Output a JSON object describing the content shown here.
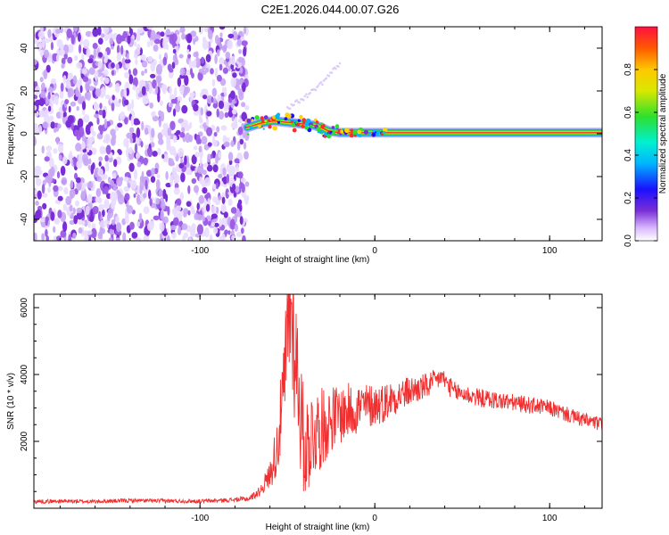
{
  "title": "C2E1.2026.044.00.07.G26",
  "colors": {
    "snr_line": "#f03030",
    "scatter": "#7a2fd6",
    "track_core": "#ff2a2a",
    "track_mid": "#ffd200",
    "track_outer": "#33e033",
    "track_edge": "#1aa0ff"
  },
  "chart_data": [
    {
      "type": "heatmap",
      "name": "spectrogram",
      "xlabel": "Height of straight line (km)",
      "ylabel": "Frequency (Hz)",
      "xlim": [
        -195,
        130
      ],
      "ylim": [
        -50,
        50
      ],
      "xticks": [
        -100,
        0,
        100
      ],
      "xtick_labels": [
        "-100",
        "0",
        "100"
      ],
      "yticks": [
        -40,
        -20,
        0,
        20,
        40
      ],
      "ytick_labels": [
        "-40",
        "-20",
        "0",
        "20",
        "40"
      ],
      "noise_region_km": [
        -195,
        -73
      ],
      "track": {
        "x": [
          -73,
          -65,
          -58,
          -52,
          -46,
          -40,
          -35,
          -31,
          -27,
          -24,
          -20,
          -15,
          -10,
          -5,
          0,
          5,
          20,
          40,
          60,
          80,
          100,
          115,
          130
        ],
        "y": [
          3,
          5,
          6,
          5.5,
          5,
          4.5,
          4,
          3,
          1.5,
          1,
          0.5,
          0.5,
          0.5,
          0.5,
          0.5,
          0.5,
          0.5,
          0.5,
          0.5,
          0.5,
          0.5,
          0.5,
          0.5
        ]
      },
      "faint_streak": {
        "x": [
          -50,
          -40,
          -30,
          -20
        ],
        "y": [
          12,
          17,
          24,
          33
        ]
      },
      "colorbar": {
        "label": "Normalized spectral amplitude",
        "range": [
          0,
          1
        ],
        "ticks": [
          0.0,
          0.2,
          0.4,
          0.6,
          0.8
        ],
        "tick_labels": [
          "0.0",
          "0.2",
          "0.4",
          "0.6",
          "0.8"
        ]
      }
    },
    {
      "type": "line",
      "name": "snr",
      "xlabel": "Height of straight line (km)",
      "ylabel": "SNR (10 * v/v)",
      "xlim": [
        -195,
        130
      ],
      "ylim": [
        0,
        6400
      ],
      "xticks": [
        -100,
        0,
        100
      ],
      "xtick_labels": [
        "-100",
        "0",
        "100"
      ],
      "yticks": [
        2000,
        4000,
        6000
      ],
      "ytick_labels": [
        "2000",
        "4000",
        "6000"
      ],
      "series": [
        {
          "name": "SNR",
          "x": [
            -195,
            -180,
            -160,
            -140,
            -120,
            -100,
            -85,
            -72,
            -66,
            -60,
            -56,
            -52,
            -50,
            -48,
            -46,
            -44,
            -42,
            -40,
            -35,
            -30,
            -25,
            -20,
            -15,
            -10,
            -5,
            0,
            5,
            10,
            20,
            30,
            35,
            38,
            45,
            60,
            80,
            100,
            115,
            130
          ],
          "values": [
            200,
            210,
            200,
            230,
            220,
            210,
            240,
            280,
            500,
            1000,
            1800,
            3500,
            5200,
            6100,
            4800,
            4000,
            2500,
            1800,
            2300,
            2400,
            2700,
            2800,
            2900,
            3000,
            3050,
            3100,
            3150,
            3300,
            3500,
            3650,
            3800,
            3950,
            3500,
            3300,
            3150,
            3000,
            2700,
            2500
          ],
          "noise_amplitude": [
            60,
            60,
            60,
            60,
            60,
            60,
            60,
            80,
            150,
            400,
            900,
            1500,
            2000,
            2200,
            2200,
            2000,
            1800,
            1600,
            1400,
            1200,
            1000,
            900,
            850,
            800,
            700,
            650,
            600,
            550,
            450,
            400,
            350,
            300,
            300,
            280,
            260,
            240,
            230,
            220
          ]
        }
      ]
    }
  ]
}
